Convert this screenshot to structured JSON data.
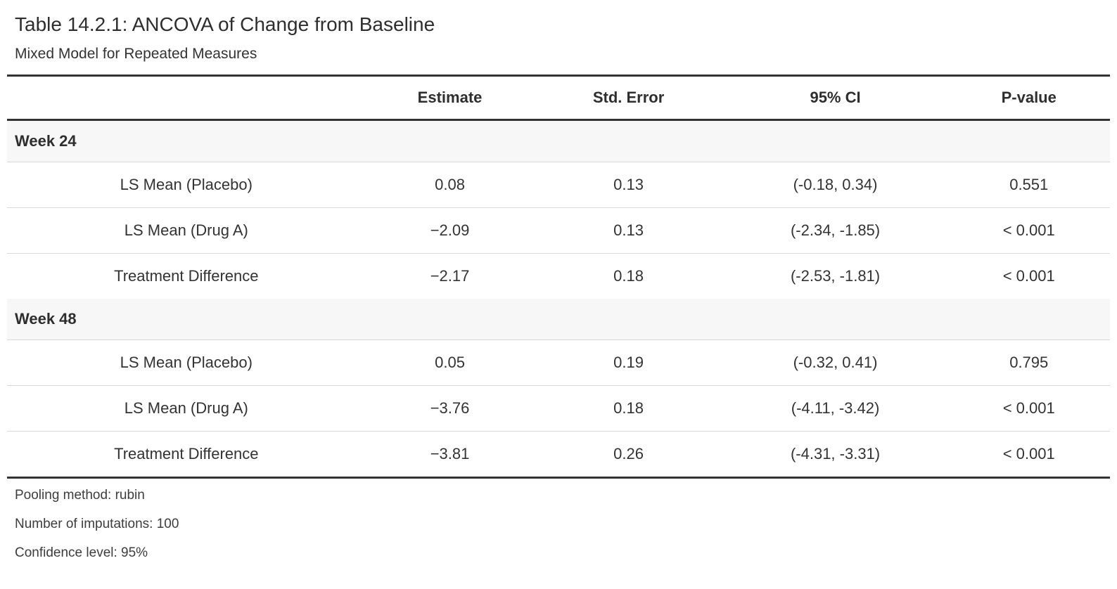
{
  "table": {
    "title": "Table 14.2.1: ANCOVA of Change from Baseline",
    "subtitle": "Mixed Model for Repeated Measures",
    "columns": {
      "stub": "",
      "estimate": "Estimate",
      "std_error": "Std. Error",
      "ci": "95% CI",
      "p_value": "P-value"
    },
    "groups": [
      {
        "label": "Week 24",
        "rows": [
          {
            "label": "LS Mean (Placebo)",
            "estimate": "0.08",
            "std_error": "0.13",
            "ci": "(-0.18, 0.34)",
            "p_value": "0.551"
          },
          {
            "label": "LS Mean (Drug A)",
            "estimate": "−2.09",
            "std_error": "0.13",
            "ci": "(-2.34, -1.85)",
            "p_value": "< 0.001"
          },
          {
            "label": "Treatment Difference",
            "estimate": "−2.17",
            "std_error": "0.18",
            "ci": "(-2.53, -1.81)",
            "p_value": "< 0.001"
          }
        ]
      },
      {
        "label": "Week 48",
        "rows": [
          {
            "label": "LS Mean (Placebo)",
            "estimate": "0.05",
            "std_error": "0.19",
            "ci": "(-0.32, 0.41)",
            "p_value": "0.795"
          },
          {
            "label": "LS Mean (Drug A)",
            "estimate": "−3.76",
            "std_error": "0.18",
            "ci": "(-4.11, -3.42)",
            "p_value": "< 0.001"
          },
          {
            "label": "Treatment Difference",
            "estimate": "−3.81",
            "std_error": "0.26",
            "ci": "(-4.31, -3.31)",
            "p_value": "< 0.001"
          }
        ]
      }
    ],
    "footnotes": [
      "Pooling method: rubin",
      "Number of imputations: 100",
      "Confidence level: 95%"
    ],
    "colors": {
      "border_dark": "#333333",
      "border_light": "#d9d9d9",
      "group_row_bg": "#f7f7f7",
      "text": "#333333",
      "background": "#ffffff"
    }
  }
}
